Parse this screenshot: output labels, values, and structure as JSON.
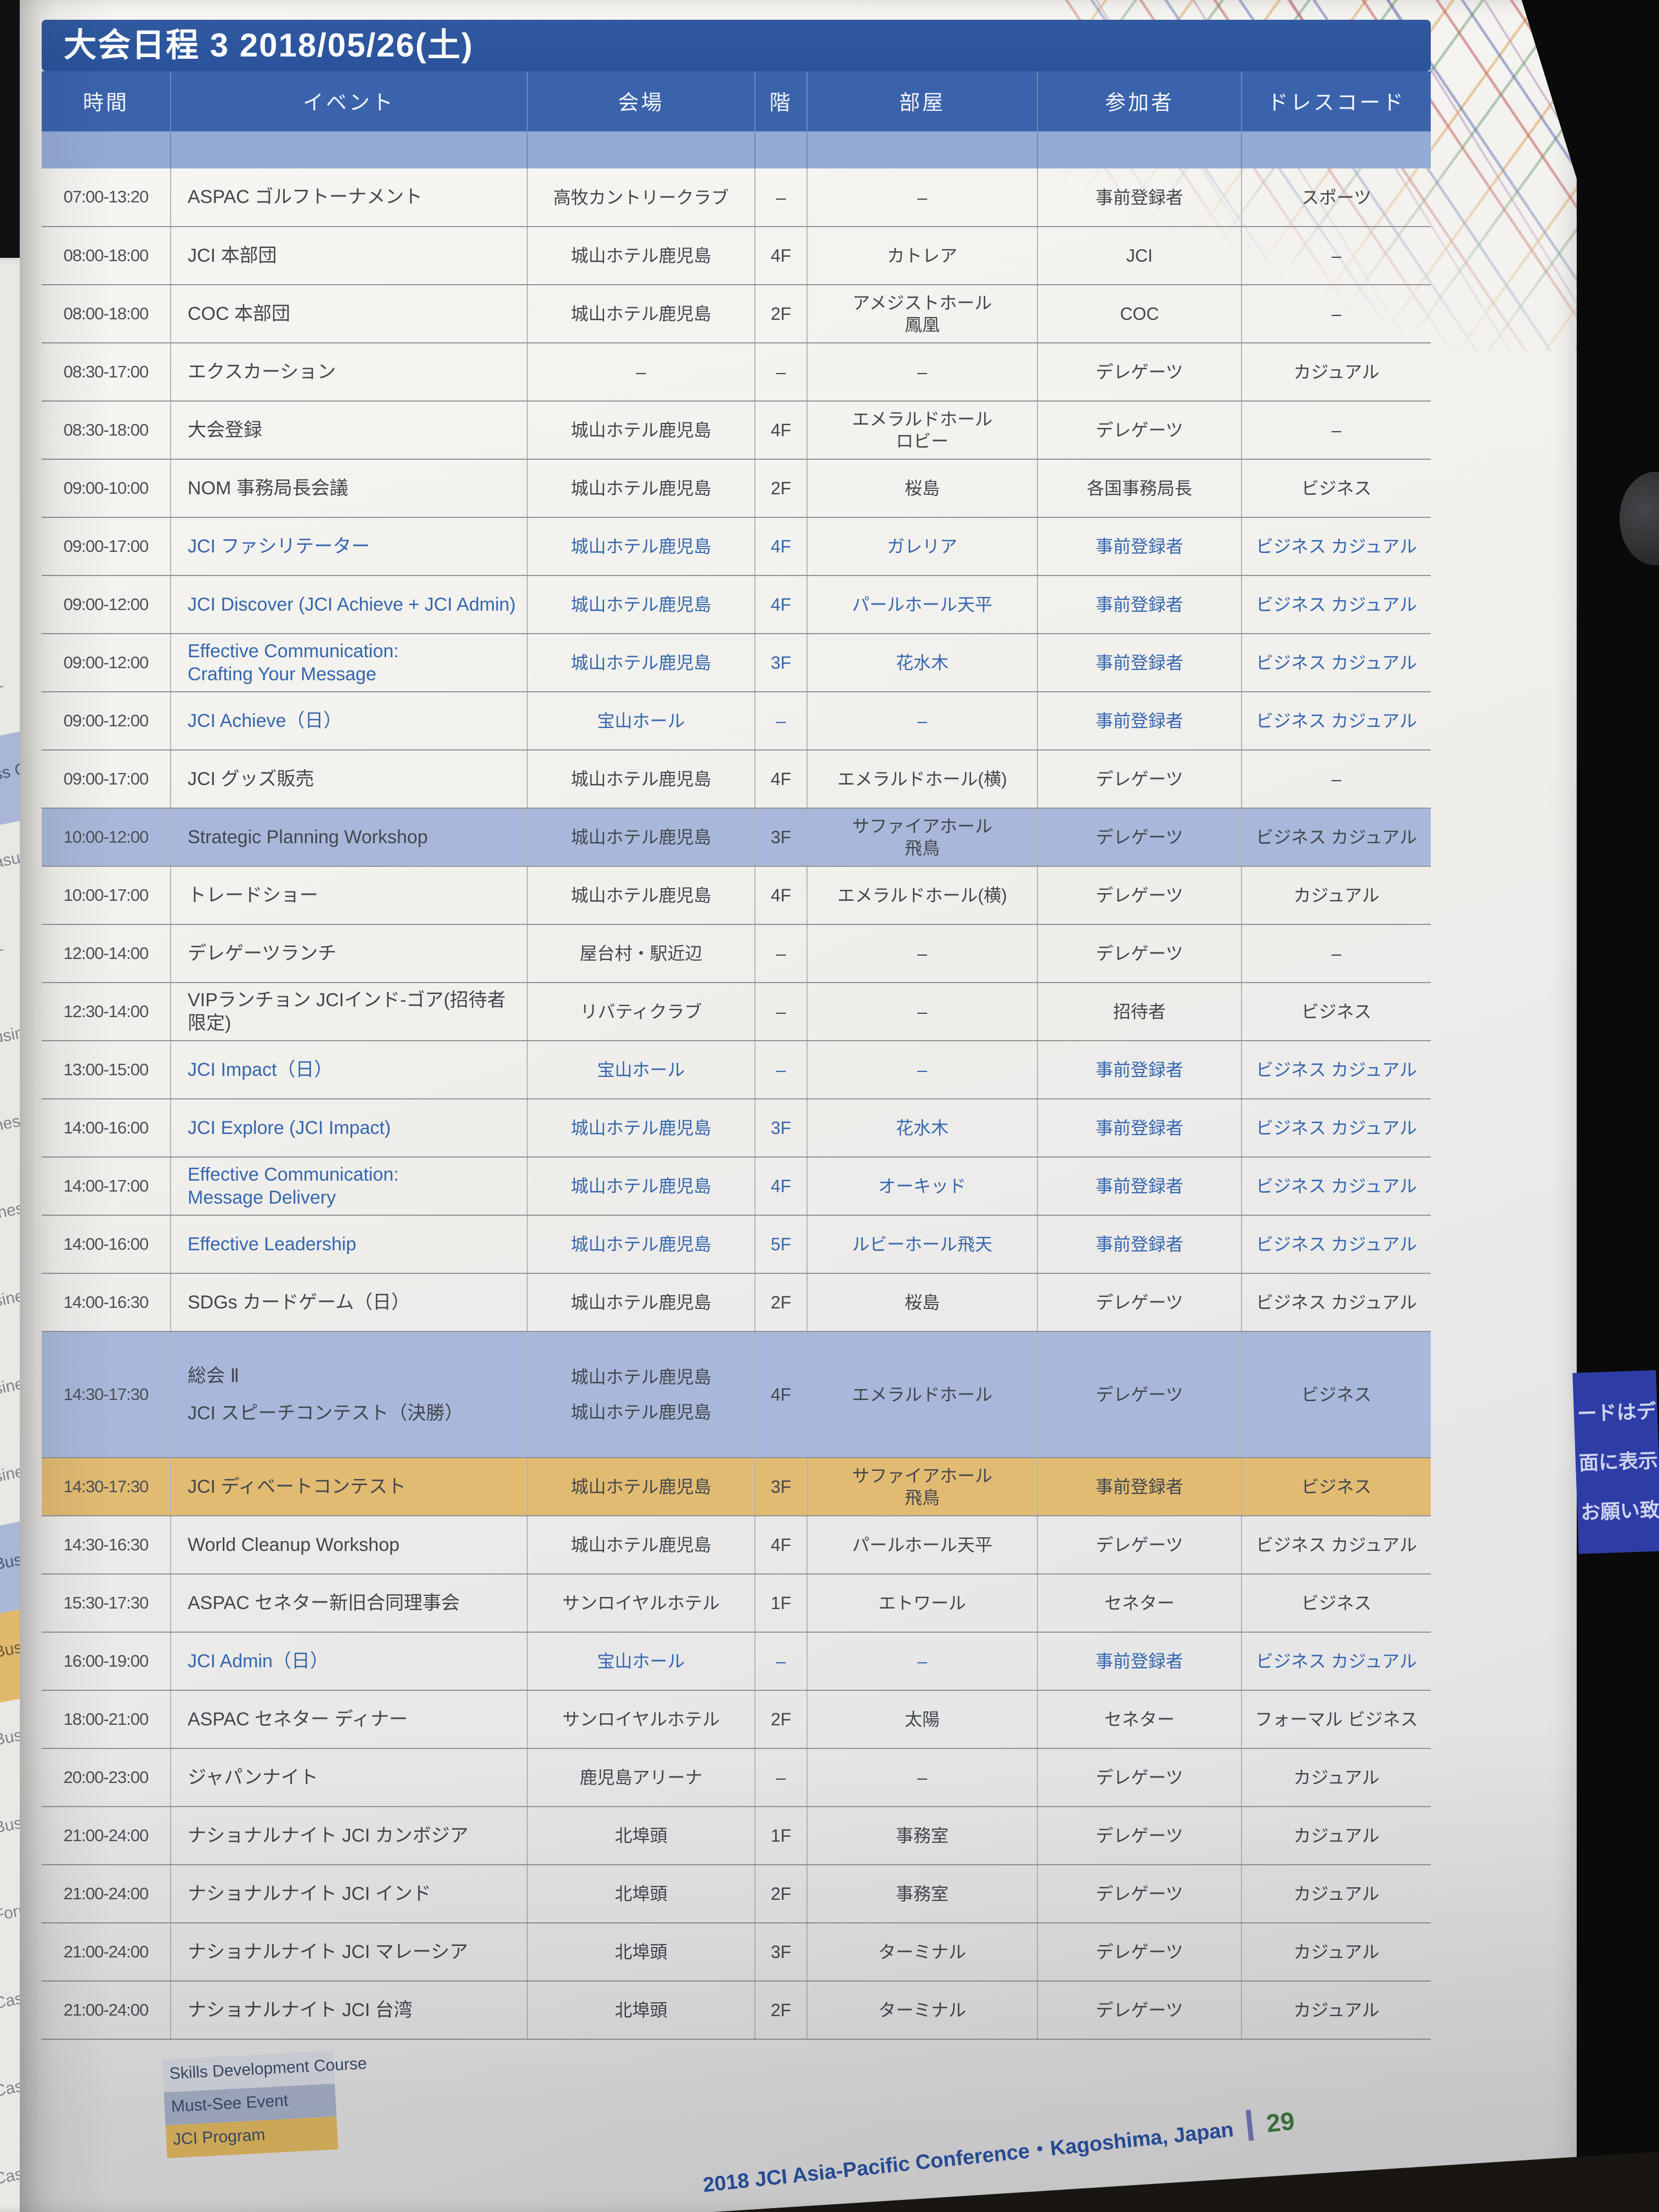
{
  "title": "大会日程 3 2018/05/26(土)",
  "table": {
    "headers": {
      "time": "時間",
      "event": "イベント",
      "venue": "会場",
      "floor": "階",
      "room": "部屋",
      "participants": "参加者",
      "dress": "ドレスコード"
    },
    "rows": [
      {
        "time": "07:00-13:20",
        "event": "ASPAC ゴルフトーナメント",
        "venue": "高牧カントリークラブ",
        "floor": "–",
        "room": "–",
        "participants": "事前登録者",
        "dress": "スポーツ",
        "text": "",
        "highlight": "",
        "tall": false
      },
      {
        "time": "08:00-18:00",
        "event": "JCI 本部団",
        "venue": "城山ホテル鹿児島",
        "floor": "4F",
        "room": "カトレア",
        "participants": "JCI",
        "dress": "–",
        "text": "",
        "highlight": "",
        "tall": false
      },
      {
        "time": "08:00-18:00",
        "event": "COC 本部団",
        "venue": "城山ホテル鹿児島",
        "floor": "2F",
        "room": "アメジストホール\n鳳凰",
        "participants": "COC",
        "dress": "–",
        "text": "",
        "highlight": "",
        "tall": false
      },
      {
        "time": "08:30-17:00",
        "event": "エクスカーション",
        "venue": "–",
        "floor": "–",
        "room": "–",
        "participants": "デレゲーツ",
        "dress": "カジュアル",
        "text": "",
        "highlight": "",
        "tall": false
      },
      {
        "time": "08:30-18:00",
        "event": "大会登録",
        "venue": "城山ホテル鹿児島",
        "floor": "4F",
        "room": "エメラルドホール\nロビー",
        "participants": "デレゲーツ",
        "dress": "–",
        "text": "",
        "highlight": "",
        "tall": false
      },
      {
        "time": "09:00-10:00",
        "event": "NOM 事務局長会議",
        "venue": "城山ホテル鹿児島",
        "floor": "2F",
        "room": "桜島",
        "participants": "各国事務局長",
        "dress": "ビジネス",
        "text": "",
        "highlight": "",
        "tall": false
      },
      {
        "time": "09:00-17:00",
        "event": "JCI ファシリテーター",
        "venue": "城山ホテル鹿児島",
        "floor": "4F",
        "room": "ガレリア",
        "participants": "事前登録者",
        "dress": "ビジネス カジュアル",
        "text": "blue",
        "highlight": "",
        "tall": false
      },
      {
        "time": "09:00-12:00",
        "event": "JCI Discover (JCI Achieve + JCI Admin)",
        "venue": "城山ホテル鹿児島",
        "floor": "4F",
        "room": "パールホール天平",
        "participants": "事前登録者",
        "dress": "ビジネス カジュアル",
        "text": "blue",
        "highlight": "",
        "tall": false
      },
      {
        "time": "09:00-12:00",
        "event": "Effective Communication:\nCrafting Your Message",
        "venue": "城山ホテル鹿児島",
        "floor": "3F",
        "room": "花水木",
        "participants": "事前登録者",
        "dress": "ビジネス カジュアル",
        "text": "blue",
        "highlight": "",
        "tall": false
      },
      {
        "time": "09:00-12:00",
        "event": "JCI Achieve（日）",
        "venue": "宝山ホール",
        "floor": "–",
        "room": "–",
        "participants": "事前登録者",
        "dress": "ビジネス カジュアル",
        "text": "blue",
        "highlight": "",
        "tall": false
      },
      {
        "time": "09:00-17:00",
        "event": "JCI グッズ販売",
        "venue": "城山ホテル鹿児島",
        "floor": "4F",
        "room": "エメラルドホール(横)",
        "participants": "デレゲーツ",
        "dress": "–",
        "text": "",
        "highlight": "",
        "tall": false
      },
      {
        "time": "10:00-12:00",
        "event": "Strategic Planning Workshop",
        "venue": "城山ホテル鹿児島",
        "floor": "3F",
        "room": "サファイアホール\n飛鳥",
        "participants": "デレゲーツ",
        "dress": "ビジネス カジュアル",
        "text": "",
        "highlight": "blue",
        "tall": false
      },
      {
        "time": "10:00-17:00",
        "event": "トレードショー",
        "venue": "城山ホテル鹿児島",
        "floor": "4F",
        "room": "エメラルドホール(横)",
        "participants": "デレゲーツ",
        "dress": "カジュアル",
        "text": "",
        "highlight": "",
        "tall": false
      },
      {
        "time": "12:00-14:00",
        "event": "デレゲーツランチ",
        "venue": "屋台村・駅近辺",
        "floor": "–",
        "room": "–",
        "participants": "デレゲーツ",
        "dress": "–",
        "text": "",
        "highlight": "",
        "tall": false
      },
      {
        "time": "12:30-14:00",
        "event": "VIPランチョン JCIインド-ゴア(招待者限定)",
        "venue": "リバティクラブ",
        "floor": "–",
        "room": "–",
        "participants": "招待者",
        "dress": "ビジネス",
        "text": "",
        "highlight": "",
        "tall": false
      },
      {
        "time": "13:00-15:00",
        "event": "JCI Impact（日）",
        "venue": "宝山ホール",
        "floor": "–",
        "room": "–",
        "participants": "事前登録者",
        "dress": "ビジネス カジュアル",
        "text": "blue",
        "highlight": "",
        "tall": false
      },
      {
        "time": "14:00-16:00",
        "event": "JCI Explore (JCI Impact)",
        "venue": "城山ホテル鹿児島",
        "floor": "3F",
        "room": "花水木",
        "participants": "事前登録者",
        "dress": "ビジネス カジュアル",
        "text": "blue",
        "highlight": "",
        "tall": false
      },
      {
        "time": "14:00-17:00",
        "event": "Effective Communication:\nMessage Delivery",
        "venue": "城山ホテル鹿児島",
        "floor": "4F",
        "room": "オーキッド",
        "participants": "事前登録者",
        "dress": "ビジネス カジュアル",
        "text": "blue",
        "highlight": "",
        "tall": false
      },
      {
        "time": "14:00-16:00",
        "event": "Effective Leadership",
        "venue": "城山ホテル鹿児島",
        "floor": "5F",
        "room": "ルビーホール飛天",
        "participants": "事前登録者",
        "dress": "ビジネス カジュアル",
        "text": "blue",
        "highlight": "",
        "tall": false
      },
      {
        "time": "14:00-16:30",
        "event": "SDGs カードゲーム（日）",
        "venue": "城山ホテル鹿児島",
        "floor": "2F",
        "room": "桜島",
        "participants": "デレゲーツ",
        "dress": "ビジネス カジュアル",
        "text": "",
        "highlight": "",
        "tall": false
      },
      {
        "time": "14:30-17:30",
        "event": "総会 Ⅱ\nJCI スピーチコンテスト（決勝）",
        "venue": "城山ホテル鹿児島\n城山ホテル鹿児島",
        "floor": "4F",
        "room": "エメラルドホール",
        "participants": "デレゲーツ",
        "dress": "ビジネス",
        "text": "",
        "highlight": "blue",
        "tall": true
      },
      {
        "time": "14:30-17:30",
        "event": "JCI ディベートコンテスト",
        "venue": "城山ホテル鹿児島",
        "floor": "3F",
        "room": "サファイアホール\n飛鳥",
        "participants": "事前登録者",
        "dress": "ビジネス",
        "text": "",
        "highlight": "gold",
        "tall": false
      },
      {
        "time": "14:30-16:30",
        "event": "World Cleanup Workshop",
        "venue": "城山ホテル鹿児島",
        "floor": "4F",
        "room": "パールホール天平",
        "participants": "デレゲーツ",
        "dress": "ビジネス カジュアル",
        "text": "",
        "highlight": "",
        "tall": false
      },
      {
        "time": "15:30-17:30",
        "event": "ASPAC セネター新旧合同理事会",
        "venue": "サンロイヤルホテル",
        "floor": "1F",
        "room": "エトワール",
        "participants": "セネター",
        "dress": "ビジネス",
        "text": "",
        "highlight": "",
        "tall": false
      },
      {
        "time": "16:00-19:00",
        "event": "JCI Admin（日）",
        "venue": "宝山ホール",
        "floor": "–",
        "room": "–",
        "participants": "事前登録者",
        "dress": "ビジネス カジュアル",
        "text": "blue",
        "highlight": "",
        "tall": false
      },
      {
        "time": "18:00-21:00",
        "event": "ASPAC セネター ディナー",
        "venue": "サンロイヤルホテル",
        "floor": "2F",
        "room": "太陽",
        "participants": "セネター",
        "dress": "フォーマル ビジネス",
        "text": "",
        "highlight": "",
        "tall": false
      },
      {
        "time": "20:00-23:00",
        "event": "ジャパンナイト",
        "venue": "鹿児島アリーナ",
        "floor": "–",
        "room": "–",
        "participants": "デレゲーツ",
        "dress": "カジュアル",
        "text": "",
        "highlight": "",
        "tall": false
      },
      {
        "time": "21:00-24:00",
        "event": "ナショナルナイト JCI カンボジア",
        "venue": "北埠頭",
        "floor": "1F",
        "room": "事務室",
        "participants": "デレゲーツ",
        "dress": "カジュアル",
        "text": "",
        "highlight": "",
        "tall": false
      },
      {
        "time": "21:00-24:00",
        "event": "ナショナルナイト JCI インド",
        "venue": "北埠頭",
        "floor": "2F",
        "room": "事務室",
        "participants": "デレゲーツ",
        "dress": "カジュアル",
        "text": "",
        "highlight": "",
        "tall": false
      },
      {
        "time": "21:00-24:00",
        "event": "ナショナルナイト JCI マレーシア",
        "venue": "北埠頭",
        "floor": "3F",
        "room": "ターミナル",
        "participants": "デレゲーツ",
        "dress": "カジュアル",
        "text": "",
        "highlight": "",
        "tall": false
      },
      {
        "time": "21:00-24:00",
        "event": "ナショナルナイト JCI 台湾",
        "venue": "北埠頭",
        "floor": "2F",
        "room": "ターミナル",
        "participants": "デレゲーツ",
        "dress": "カジュアル",
        "text": "",
        "highlight": "",
        "tall": false
      }
    ]
  },
  "legend": {
    "items": [
      {
        "label": "Skills Development Course",
        "color": "#d9dce3"
      },
      {
        "label": "Must-See Event",
        "color": "#a9b3ca"
      },
      {
        "label": "JCI Program",
        "color": "#e4ba62"
      }
    ]
  },
  "footer": {
    "text": "2018 JCI Asia-Pacific Conference・Kagoshima, Japan",
    "page_number": "29"
  },
  "edges": {
    "left_page_fragments": [
      {
        "text": "–",
        "band": ""
      },
      {
        "text": "ss Ca",
        "band": "blue"
      },
      {
        "text": "asual",
        "band": ""
      },
      {
        "text": "–",
        "band": ""
      },
      {
        "text": "usiness",
        "band": ""
      },
      {
        "text": "ness Ca",
        "band": ""
      },
      {
        "text": "iness Ca",
        "band": ""
      },
      {
        "text": "siness Ca",
        "band": ""
      },
      {
        "text": "siness Ca",
        "band": ""
      },
      {
        "text": "siness Ca",
        "band": ""
      },
      {
        "text": "Business",
        "band": "blue"
      },
      {
        "text": "Business",
        "band": "gold"
      },
      {
        "text": "Business Ca",
        "band": ""
      },
      {
        "text": "Business",
        "band": ""
      },
      {
        "text": "Formal/Busine",
        "band": ""
      },
      {
        "text": "Casual",
        "band": ""
      },
      {
        "text": "Casual",
        "band": ""
      },
      {
        "text": "Casu",
        "band": ""
      },
      {
        "text": "Cas",
        "band": ""
      }
    ],
    "right_screen_lines": [
      "ードはデ",
      "面に表示さ",
      "お願い致し"
    ]
  },
  "colors": {
    "accent_header_blue": "#3b63ac",
    "highlight_blue": "#a9b8da",
    "highlight_gold": "#e2bb72",
    "program_text_blue": "#3566ae",
    "footer_blue": "#2a52a3",
    "page_number_green": "#3c7a41"
  }
}
